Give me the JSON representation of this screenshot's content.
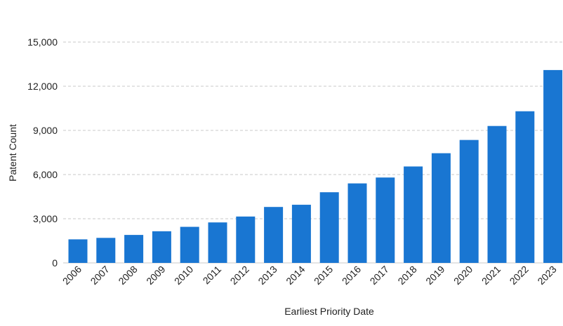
{
  "chart_data": {
    "type": "bar",
    "title": "",
    "xlabel": "Earliest Priority Date",
    "ylabel": "Patent Count",
    "categories": [
      "2006",
      "2007",
      "2008",
      "2009",
      "2010",
      "2011",
      "2012",
      "2013",
      "2014",
      "2015",
      "2016",
      "2017",
      "2018",
      "2019",
      "2020",
      "2021",
      "2022",
      "2023"
    ],
    "values": [
      1600,
      1700,
      1900,
      2150,
      2450,
      2750,
      3150,
      3800,
      3950,
      4800,
      5400,
      5800,
      6550,
      7450,
      8350,
      9300,
      10300,
      13100
    ],
    "yticks": [
      "0",
      "3,000",
      "6,000",
      "9,000",
      "12,000",
      "15,000"
    ],
    "ytick_values": [
      0,
      3000,
      6000,
      9000,
      12000,
      15000
    ],
    "ylim": [
      0,
      15000
    ],
    "grid": true,
    "legend": "none",
    "bar_color": "#1976d2"
  }
}
